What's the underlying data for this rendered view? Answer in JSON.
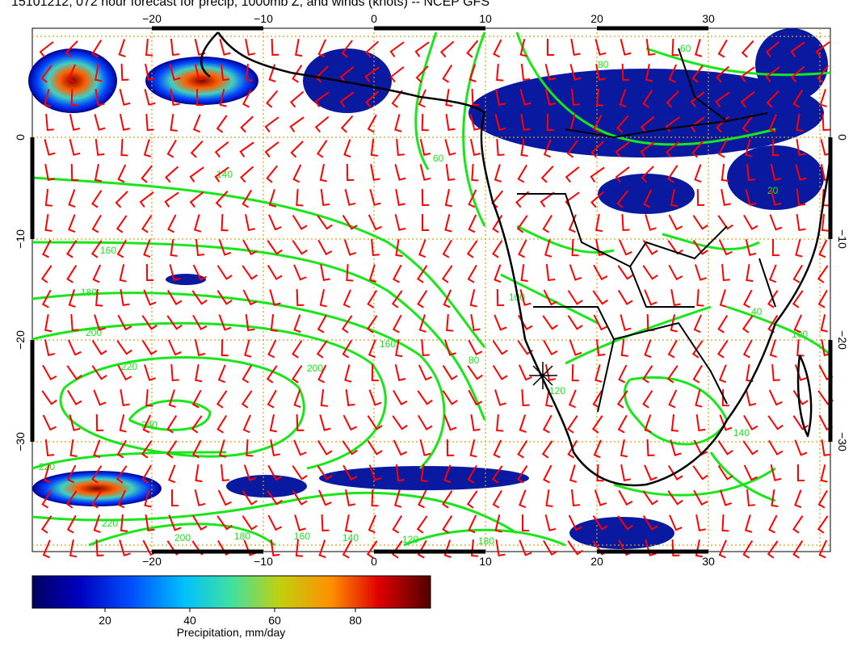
{
  "title": "15101212, 072 hour forecast for precip, 1000mb Z, and winds (knots) -- NCEP GFS",
  "map": {
    "lon_ticks": [
      "−20",
      "−10",
      "0",
      "10",
      "20",
      "30"
    ],
    "lat_ticks": [
      "0",
      "−10",
      "−20",
      "−30"
    ],
    "contour_labels": [
      "140",
      "160",
      "180",
      "200",
      "220",
      "240",
      "220",
      "220",
      "200",
      "180",
      "160",
      "140",
      "120",
      "100",
      "80",
      "60",
      "20",
      "100",
      "140",
      "120",
      "60",
      "80",
      "40",
      "160",
      "200",
      "180"
    ],
    "colors": {
      "wind_barb": "#ff0000",
      "contour": "#19e619",
      "land_outline": "#000000",
      "grid": "#d4a017"
    }
  },
  "colorbar": {
    "ticks": [
      "20",
      "40",
      "60",
      "80"
    ],
    "label": "Precipitation, mm/day",
    "colors": [
      "#000080",
      "#0000d0",
      "#0060ff",
      "#00c0ff",
      "#20e0c0",
      "#c0d000",
      "#ff8000",
      "#e00000",
      "#600000"
    ]
  }
}
